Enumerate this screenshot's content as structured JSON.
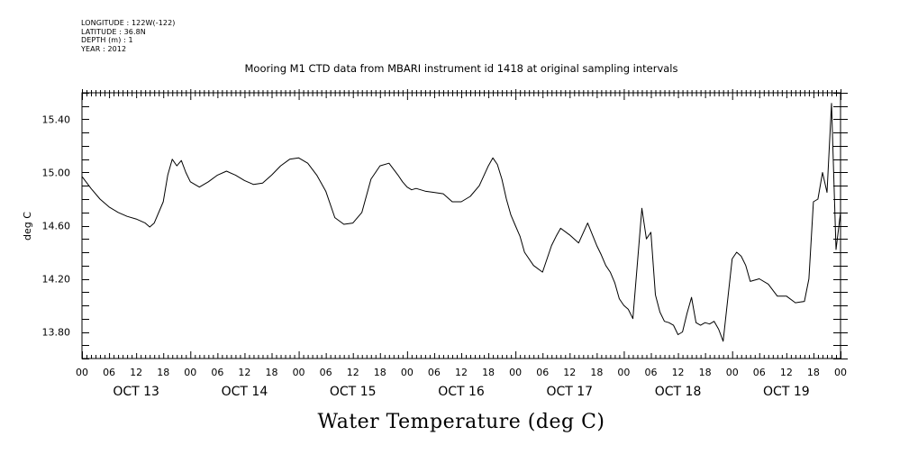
{
  "header": {
    "meta_lines": [
      "LONGITUDE : 122W(-122)",
      "LATITUDE : 36.8N",
      "DEPTH (m) : 1",
      "YEAR : 2012"
    ]
  },
  "chart_data": {
    "type": "line",
    "title": "Mooring M1 CTD data from MBARI instrument id 1418 at original sampling intervals",
    "xlabel": "Water Temperature (deg C)",
    "ylabel": "deg C",
    "ylim": [
      13.6,
      15.6
    ],
    "xlim": [
      0,
      168
    ],
    "x_units": "hours since 2012-10-13 00:00",
    "grid": false,
    "legend": "none",
    "line_color": "#000000",
    "y_ticks": [
      13.8,
      14.2,
      14.6,
      15.0,
      15.4
    ],
    "y_tick_labels": [
      "13.80",
      "14.20",
      "14.60",
      "15.00",
      "15.40"
    ],
    "x_hour_labels": [
      "00",
      "06",
      "12",
      "18",
      "00",
      "06",
      "12",
      "18",
      "00",
      "06",
      "12",
      "18",
      "00",
      "06",
      "12",
      "18",
      "00",
      "06",
      "12",
      "18",
      "00",
      "06",
      "12",
      "18",
      "00",
      "06",
      "12",
      "18",
      "00"
    ],
    "day_labels": [
      "OCT 13",
      "OCT 14",
      "OCT 15",
      "OCT 16",
      "OCT 17",
      "OCT 18",
      "OCT 19"
    ],
    "series": [
      {
        "x": [
          0,
          2,
          4,
          6,
          8,
          10,
          12,
          14,
          15,
          16,
          18,
          19,
          20,
          21,
          22,
          23,
          24,
          26,
          28,
          30,
          32,
          34,
          36,
          38,
          40,
          42,
          44,
          46,
          48,
          50,
          52,
          54,
          56,
          58,
          60,
          62,
          64,
          65,
          66,
          68,
          70,
          71,
          72,
          73,
          74,
          75,
          76,
          78,
          80,
          82,
          84,
          86,
          88,
          90,
          91,
          92,
          93,
          94,
          95,
          96,
          97,
          98,
          100,
          102,
          103,
          104,
          105,
          106,
          108,
          110,
          112,
          114,
          115,
          116,
          117,
          118,
          119,
          120,
          121,
          122,
          124,
          125,
          126,
          127,
          128,
          129,
          130,
          131,
          132,
          133,
          134,
          135,
          136,
          137,
          138,
          139,
          140,
          141,
          142,
          144,
          145,
          146,
          147,
          148,
          150,
          152,
          154,
          156,
          158,
          160,
          161,
          162,
          163,
          164,
          165,
          166,
          167,
          168
        ],
        "y": [
          14.97,
          14.88,
          14.8,
          14.74,
          14.7,
          14.67,
          14.65,
          14.62,
          14.59,
          14.62,
          14.78,
          14.98,
          15.1,
          15.05,
          15.09,
          15.0,
          14.93,
          14.89,
          14.93,
          14.98,
          15.01,
          14.98,
          14.94,
          14.91,
          14.92,
          14.98,
          15.05,
          15.1,
          15.11,
          15.07,
          14.98,
          14.86,
          14.66,
          14.61,
          14.62,
          14.7,
          14.95,
          15.0,
          15.05,
          15.07,
          14.98,
          14.93,
          14.89,
          14.87,
          14.88,
          14.87,
          14.86,
          14.85,
          14.84,
          14.78,
          14.78,
          14.82,
          14.9,
          15.05,
          15.11,
          15.06,
          14.95,
          14.8,
          14.68,
          14.6,
          14.52,
          14.4,
          14.3,
          14.25,
          14.35,
          14.45,
          14.52,
          14.58,
          14.53,
          14.47,
          14.62,
          14.45,
          14.38,
          14.3,
          14.25,
          14.17,
          14.05,
          14.0,
          13.97,
          13.9,
          14.73,
          14.5,
          14.55,
          14.08,
          13.95,
          13.88,
          13.87,
          13.85,
          13.78,
          13.8,
          13.94,
          14.06,
          13.87,
          13.85,
          13.87,
          13.86,
          13.88,
          13.82,
          13.73,
          14.35,
          14.4,
          14.37,
          14.3,
          14.18,
          14.2,
          14.16,
          14.07,
          14.07,
          14.02,
          14.03,
          14.2,
          14.78,
          14.8,
          15.0,
          14.85,
          15.52,
          14.42,
          14.7
        ]
      }
    ]
  }
}
